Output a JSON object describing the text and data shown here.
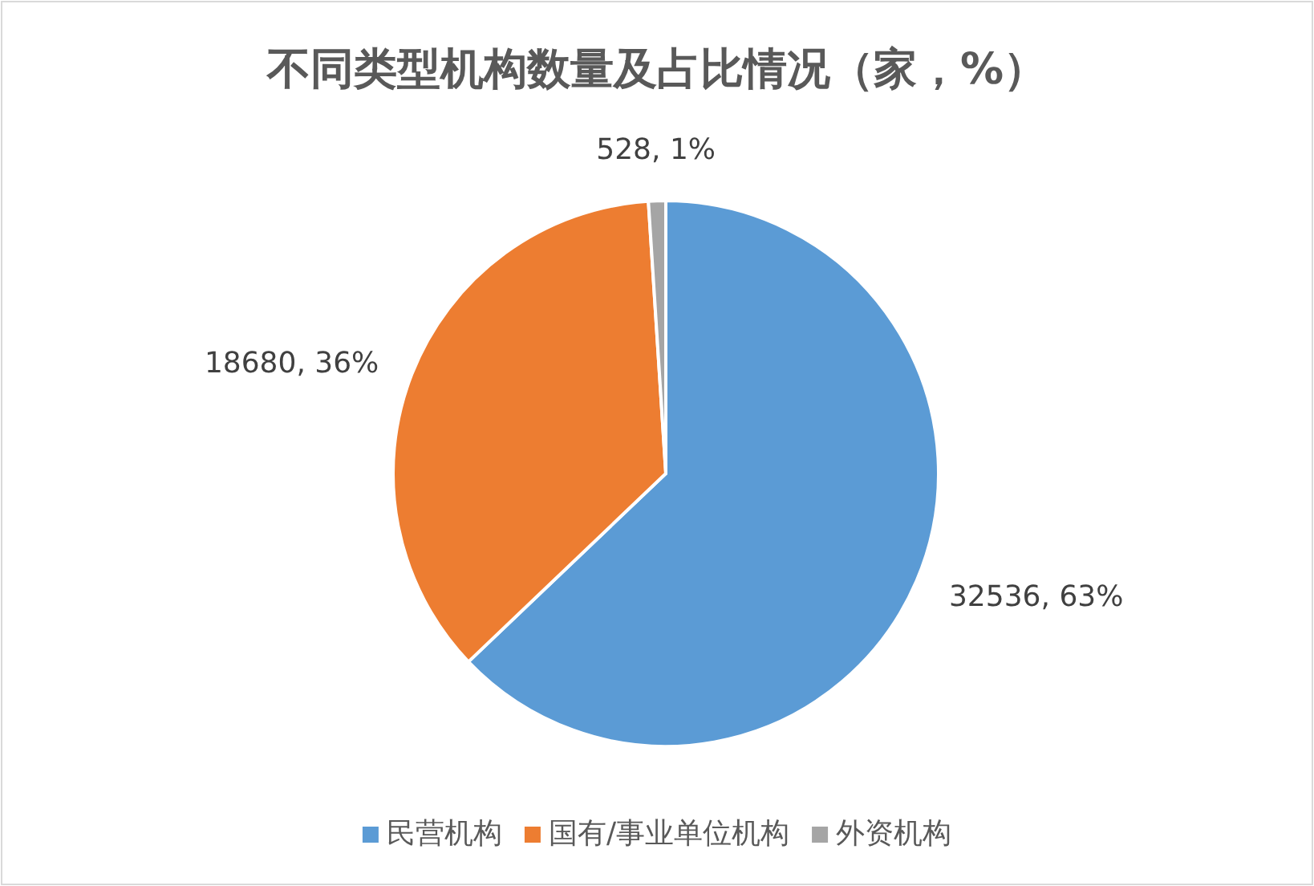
{
  "chart_data": {
    "type": "pie",
    "title": "不同类型机构数量及占比情况（家，%）",
    "categories": [
      "民营机构",
      "国有/事业单位机构",
      "外资机构"
    ],
    "values": [
      32536,
      18680,
      528
    ],
    "colors": [
      "#5b9bd5",
      "#ed7d31",
      "#a5a5a5"
    ],
    "value_labels": [
      "32536, 63%",
      "18680, 36%",
      "528, 1%"
    ],
    "legend": "bottom"
  }
}
